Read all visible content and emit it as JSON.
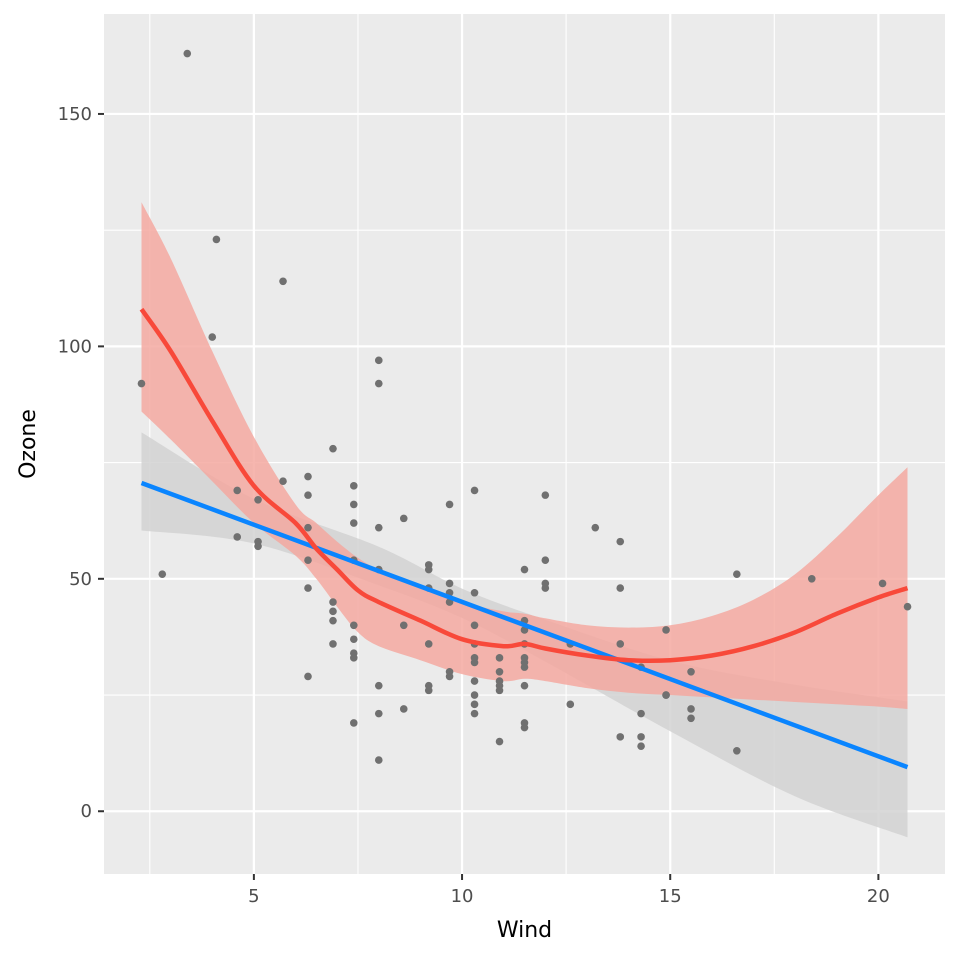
{
  "chart_data": {
    "type": "scatter",
    "title": "",
    "xlabel": "Wind",
    "ylabel": "Ozone",
    "xlim": [
      1.4,
      21.6
    ],
    "ylim": [
      -13.5,
      171.5
    ],
    "x_ticks": [
      5,
      10,
      15,
      20
    ],
    "y_ticks": [
      0,
      50,
      100,
      150
    ],
    "grid": true,
    "legend": "none",
    "colors": {
      "panel_bg": "#EBEBEB",
      "grid": "#FFFFFF",
      "points": "#707070",
      "linear_fit": "#0A85FF",
      "linear_band": "#D2D2D2",
      "loess_fit": "#F8493A",
      "loess_band": "#F4A69E",
      "tick_text": "#4D4D4D"
    },
    "points": [
      {
        "x": 2.3,
        "y": 92
      },
      {
        "x": 2.8,
        "y": 51
      },
      {
        "x": 3.4,
        "y": 163
      },
      {
        "x": 4.0,
        "y": 102
      },
      {
        "x": 4.1,
        "y": 123
      },
      {
        "x": 4.6,
        "y": 69
      },
      {
        "x": 4.6,
        "y": 59
      },
      {
        "x": 5.1,
        "y": 67
      },
      {
        "x": 5.1,
        "y": 58
      },
      {
        "x": 5.1,
        "y": 57
      },
      {
        "x": 5.7,
        "y": 114
      },
      {
        "x": 5.7,
        "y": 71
      },
      {
        "x": 6.3,
        "y": 72
      },
      {
        "x": 6.3,
        "y": 68
      },
      {
        "x": 6.3,
        "y": 61
      },
      {
        "x": 6.3,
        "y": 54
      },
      {
        "x": 6.3,
        "y": 48
      },
      {
        "x": 6.3,
        "y": 29
      },
      {
        "x": 6.9,
        "y": 78
      },
      {
        "x": 6.9,
        "y": 45
      },
      {
        "x": 6.9,
        "y": 43
      },
      {
        "x": 6.9,
        "y": 41
      },
      {
        "x": 6.9,
        "y": 36
      },
      {
        "x": 7.4,
        "y": 70
      },
      {
        "x": 7.4,
        "y": 66
      },
      {
        "x": 7.4,
        "y": 62
      },
      {
        "x": 7.4,
        "y": 54
      },
      {
        "x": 7.4,
        "y": 40
      },
      {
        "x": 7.4,
        "y": 37
      },
      {
        "x": 7.4,
        "y": 34
      },
      {
        "x": 7.4,
        "y": 33
      },
      {
        "x": 7.4,
        "y": 19
      },
      {
        "x": 8.0,
        "y": 97
      },
      {
        "x": 8.0,
        "y": 92
      },
      {
        "x": 8.0,
        "y": 61
      },
      {
        "x": 8.0,
        "y": 52
      },
      {
        "x": 8.0,
        "y": 27
      },
      {
        "x": 8.0,
        "y": 21
      },
      {
        "x": 8.0,
        "y": 11
      },
      {
        "x": 8.6,
        "y": 63
      },
      {
        "x": 8.6,
        "y": 40
      },
      {
        "x": 8.6,
        "y": 22
      },
      {
        "x": 9.2,
        "y": 53
      },
      {
        "x": 9.2,
        "y": 52
      },
      {
        "x": 9.2,
        "y": 48
      },
      {
        "x": 9.2,
        "y": 36
      },
      {
        "x": 9.2,
        "y": 27
      },
      {
        "x": 9.2,
        "y": 26
      },
      {
        "x": 9.7,
        "y": 66
      },
      {
        "x": 9.7,
        "y": 49
      },
      {
        "x": 9.7,
        "y": 47
      },
      {
        "x": 9.7,
        "y": 45
      },
      {
        "x": 9.7,
        "y": 30
      },
      {
        "x": 9.7,
        "y": 29
      },
      {
        "x": 10.3,
        "y": 69
      },
      {
        "x": 10.3,
        "y": 47
      },
      {
        "x": 10.3,
        "y": 40
      },
      {
        "x": 10.3,
        "y": 36
      },
      {
        "x": 10.3,
        "y": 33
      },
      {
        "x": 10.3,
        "y": 32
      },
      {
        "x": 10.3,
        "y": 28
      },
      {
        "x": 10.3,
        "y": 25
      },
      {
        "x": 10.3,
        "y": 23
      },
      {
        "x": 10.3,
        "y": 21
      },
      {
        "x": 10.9,
        "y": 33
      },
      {
        "x": 10.9,
        "y": 30
      },
      {
        "x": 10.9,
        "y": 28
      },
      {
        "x": 10.9,
        "y": 27
      },
      {
        "x": 10.9,
        "y": 26
      },
      {
        "x": 10.9,
        "y": 15
      },
      {
        "x": 11.5,
        "y": 52
      },
      {
        "x": 11.5,
        "y": 41
      },
      {
        "x": 11.5,
        "y": 39
      },
      {
        "x": 11.5,
        "y": 36
      },
      {
        "x": 11.5,
        "y": 33
      },
      {
        "x": 11.5,
        "y": 32
      },
      {
        "x": 11.5,
        "y": 31
      },
      {
        "x": 11.5,
        "y": 27
      },
      {
        "x": 11.5,
        "y": 19
      },
      {
        "x": 11.5,
        "y": 18
      },
      {
        "x": 12.0,
        "y": 68
      },
      {
        "x": 12.0,
        "y": 54
      },
      {
        "x": 12.0,
        "y": 49
      },
      {
        "x": 12.0,
        "y": 48
      },
      {
        "x": 12.6,
        "y": 36
      },
      {
        "x": 12.6,
        "y": 23
      },
      {
        "x": 13.2,
        "y": 61
      },
      {
        "x": 13.8,
        "y": 58
      },
      {
        "x": 13.8,
        "y": 48
      },
      {
        "x": 13.8,
        "y": 36
      },
      {
        "x": 13.8,
        "y": 16
      },
      {
        "x": 14.3,
        "y": 31
      },
      {
        "x": 14.3,
        "y": 21
      },
      {
        "x": 14.3,
        "y": 16
      },
      {
        "x": 14.3,
        "y": 14
      },
      {
        "x": 14.9,
        "y": 39
      },
      {
        "x": 14.9,
        "y": 25
      },
      {
        "x": 14.9,
        "y": 25
      },
      {
        "x": 15.5,
        "y": 30
      },
      {
        "x": 15.5,
        "y": 22
      },
      {
        "x": 15.5,
        "y": 20
      },
      {
        "x": 16.6,
        "y": 51
      },
      {
        "x": 16.6,
        "y": 13
      },
      {
        "x": 18.4,
        "y": 50
      },
      {
        "x": 20.1,
        "y": 49
      },
      {
        "x": 20.7,
        "y": 44
      }
    ],
    "series": [
      {
        "kind": "linear-fit",
        "x": [
          2.3,
          20.7
        ],
        "y": [
          70.6,
          9.5
        ],
        "band": {
          "x": [
            2.3,
            5.0,
            8.0,
            10.0,
            12.0,
            15.0,
            18.0,
            20.7
          ],
          "lower": [
            60.4,
            57.6,
            48.6,
            41.6,
            32.2,
            17.2,
            3.2,
            -5.6
          ],
          "upper": [
            81.5,
            67.2,
            56.9,
            47.9,
            41.2,
            32.4,
            27.2,
            23.6
          ]
        }
      },
      {
        "kind": "loess-fit",
        "x": [
          2.3,
          3.0,
          4.0,
          5.0,
          6.0,
          6.5,
          7.0,
          7.5,
          8.0,
          9.0,
          10.0,
          11.0,
          11.5,
          12.0,
          13.0,
          14.0,
          15.0,
          16.0,
          17.0,
          18.0,
          19.0,
          20.0,
          20.7
        ],
        "y": [
          108.0,
          99.0,
          84.0,
          70.0,
          62.0,
          56.5,
          52.0,
          47.5,
          45.0,
          41.0,
          37.0,
          35.5,
          36.0,
          35.0,
          33.5,
          32.5,
          32.5,
          33.5,
          35.5,
          38.5,
          42.5,
          46.0,
          48.0
        ],
        "band": {
          "x": [
            2.3,
            3.0,
            4.0,
            5.0,
            6.0,
            6.5,
            7.0,
            7.5,
            8.0,
            9.0,
            10.0,
            11.0,
            11.5,
            12.0,
            13.0,
            14.0,
            15.0,
            16.0,
            17.0,
            18.0,
            19.0,
            20.0,
            20.7
          ],
          "lower": [
            86.0,
            80.0,
            71.0,
            62.0,
            55.0,
            50.0,
            44.0,
            38.5,
            35.5,
            32.5,
            29.5,
            28.0,
            28.5,
            28.0,
            26.5,
            25.5,
            25.0,
            24.5,
            24.0,
            23.5,
            23.0,
            22.5,
            22.0
          ],
          "upper": [
            131.0,
            119.0,
            99.0,
            80.5,
            66.0,
            62.0,
            58.0,
            54.5,
            52.0,
            48.5,
            45.0,
            43.0,
            42.5,
            41.5,
            40.0,
            39.5,
            40.0,
            42.0,
            45.5,
            51.0,
            59.0,
            68.0,
            74.0
          ]
        }
      }
    ]
  }
}
